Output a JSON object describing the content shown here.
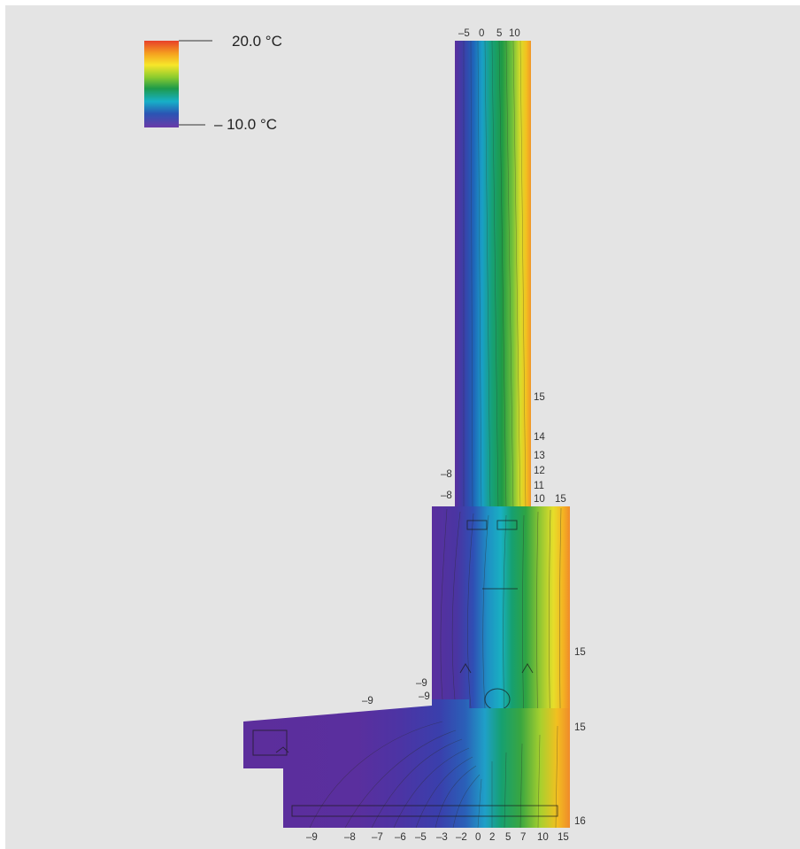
{
  "legend": {
    "max_label": "20.0 °C",
    "min_label": "– 10.0 °C",
    "gradient": [
      "#e8402a",
      "#f5a21f",
      "#f7e62a",
      "#8ccc2e",
      "#1e9a4a",
      "#17b0c8",
      "#2a55b4",
      "#6a3aa8"
    ]
  },
  "labels": {
    "top": [
      "–5",
      "0",
      "5",
      "10"
    ],
    "right_glass": [
      "15",
      "14",
      "13",
      "12",
      "11",
      "10"
    ],
    "right_frame": [
      "15",
      "15",
      "15",
      "16"
    ],
    "left_mid": [
      "–8",
      "–8"
    ],
    "left_sill": [
      "–9",
      "–9",
      "–9"
    ],
    "bottom": [
      "–9",
      "–8",
      "–7",
      "–6",
      "–5",
      "–3",
      "–2",
      "0",
      "2",
      "5",
      "7",
      "10",
      "15"
    ]
  },
  "colors": {
    "background": "#e4e4e4",
    "cold": "#5a2f9e",
    "warm": "#f09a2a"
  }
}
